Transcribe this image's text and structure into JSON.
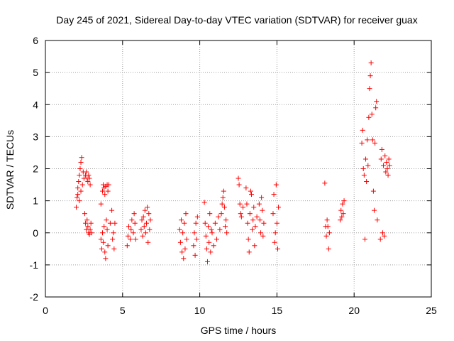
{
  "chart_data": {
    "type": "scatter",
    "title": "Day 245 of 2021, Sidereal Day-to-day VTEC variation (SDTVAR) for receiver guax",
    "xlabel": "GPS time / hours",
    "ylabel": "SDTVAR / TECUs",
    "xlim": [
      0,
      25
    ],
    "ylim": [
      -2,
      6
    ],
    "x_ticks": [
      0,
      5,
      10,
      15,
      20,
      25
    ],
    "x_tick_labels": [
      "0",
      "5",
      "10",
      "15",
      "20",
      "25"
    ],
    "y_ticks": [
      -2,
      -1,
      0,
      1,
      2,
      3,
      4,
      5,
      6
    ],
    "y_tick_labels": [
      "-2",
      "-1",
      "0",
      "1",
      "2",
      "3",
      "4",
      "5",
      "6"
    ],
    "grid": true,
    "marker": "plus",
    "marker_color": "#ff0000",
    "series": [
      {
        "name": "SDTVAR",
        "points": [
          [
            2.0,
            0.8
          ],
          [
            2.05,
            1.1
          ],
          [
            2.1,
            1.4
          ],
          [
            2.15,
            1.6
          ],
          [
            2.2,
            1.8
          ],
          [
            2.25,
            2.0
          ],
          [
            2.3,
            2.2
          ],
          [
            2.35,
            2.35
          ],
          [
            2.1,
            1.2
          ],
          [
            2.2,
            1.0
          ],
          [
            2.3,
            1.3
          ],
          [
            2.4,
            1.5
          ],
          [
            2.45,
            1.9
          ],
          [
            2.5,
            1.7
          ],
          [
            2.6,
            1.8
          ],
          [
            2.65,
            1.9
          ],
          [
            2.7,
            1.7
          ],
          [
            2.75,
            1.6
          ],
          [
            2.8,
            1.8
          ],
          [
            2.85,
            1.7
          ],
          [
            2.9,
            1.5
          ],
          [
            2.55,
            0.6
          ],
          [
            2.6,
            0.3
          ],
          [
            2.65,
            0.1
          ],
          [
            2.7,
            0.4
          ],
          [
            2.75,
            0.2
          ],
          [
            2.8,
            0.0
          ],
          [
            2.85,
            -0.05
          ],
          [
            2.9,
            0.1
          ],
          [
            2.95,
            0.3
          ],
          [
            3.0,
            0.0
          ],
          [
            3.6,
            0.9
          ],
          [
            3.7,
            1.3
          ],
          [
            3.75,
            1.5
          ],
          [
            3.8,
            1.4
          ],
          [
            3.85,
            1.2
          ],
          [
            3.9,
            1.45
          ],
          [
            4.0,
            1.5
          ],
          [
            4.05,
            1.3
          ],
          [
            4.1,
            1.5
          ],
          [
            3.6,
            -0.2
          ],
          [
            3.65,
            -0.5
          ],
          [
            3.7,
            0.0
          ],
          [
            3.75,
            -0.3
          ],
          [
            3.8,
            0.2
          ],
          [
            3.85,
            -0.6
          ],
          [
            3.9,
            -0.8
          ],
          [
            3.95,
            0.4
          ],
          [
            4.0,
            0.1
          ],
          [
            4.05,
            -0.4
          ],
          [
            4.2,
            0.3
          ],
          [
            4.3,
            0.7
          ],
          [
            4.35,
            -0.2
          ],
          [
            4.4,
            0.0
          ],
          [
            4.45,
            -0.5
          ],
          [
            4.5,
            0.3
          ],
          [
            5.3,
            -0.4
          ],
          [
            5.35,
            -0.1
          ],
          [
            5.4,
            0.2
          ],
          [
            5.5,
            -0.2
          ],
          [
            5.55,
            0.1
          ],
          [
            5.6,
            0.4
          ],
          [
            5.7,
            0.0
          ],
          [
            5.75,
            0.6
          ],
          [
            5.8,
            0.3
          ],
          [
            5.85,
            -0.2
          ],
          [
            6.2,
            0.1
          ],
          [
            6.25,
            0.4
          ],
          [
            6.3,
            -0.1
          ],
          [
            6.35,
            0.5
          ],
          [
            6.4,
            0.2
          ],
          [
            6.45,
            0.7
          ],
          [
            6.5,
            0.0
          ],
          [
            6.55,
            0.3
          ],
          [
            6.6,
            0.8
          ],
          [
            6.65,
            -0.3
          ],
          [
            6.7,
            0.6
          ],
          [
            6.75,
            0.1
          ],
          [
            6.8,
            0.4
          ],
          [
            8.7,
            0.1
          ],
          [
            8.75,
            -0.3
          ],
          [
            8.8,
            0.4
          ],
          [
            8.85,
            -0.6
          ],
          [
            8.9,
            0.0
          ],
          [
            8.95,
            -0.8
          ],
          [
            9.0,
            0.3
          ],
          [
            9.05,
            -0.5
          ],
          [
            9.1,
            0.6
          ],
          [
            9.15,
            -0.2
          ],
          [
            9.6,
            -0.4
          ],
          [
            9.65,
            0.0
          ],
          [
            9.7,
            -0.7
          ],
          [
            9.75,
            0.3
          ],
          [
            9.8,
            -0.2
          ],
          [
            9.85,
            0.5
          ],
          [
            10.3,
            0.95
          ],
          [
            10.35,
            0.3
          ],
          [
            10.4,
            -0.1
          ],
          [
            10.45,
            -0.5
          ],
          [
            10.5,
            -0.9
          ],
          [
            10.55,
            0.2
          ],
          [
            10.6,
            -0.3
          ],
          [
            10.65,
            0.6
          ],
          [
            10.7,
            -0.6
          ],
          [
            10.75,
            0.1
          ],
          [
            10.8,
            0.0
          ],
          [
            10.9,
            -0.4
          ],
          [
            11.0,
            0.3
          ],
          [
            11.1,
            -0.2
          ],
          [
            11.2,
            0.5
          ],
          [
            11.3,
            0.1
          ],
          [
            11.4,
            0.6
          ],
          [
            11.45,
            0.9
          ],
          [
            11.5,
            1.1
          ],
          [
            11.55,
            1.3
          ],
          [
            11.6,
            0.8
          ],
          [
            11.65,
            0.2
          ],
          [
            11.7,
            0.4
          ],
          [
            11.75,
            0.0
          ],
          [
            12.5,
            1.7
          ],
          [
            12.55,
            1.5
          ],
          [
            12.6,
            0.9
          ],
          [
            12.65,
            0.6
          ],
          [
            12.7,
            0.5
          ],
          [
            12.8,
            0.8
          ],
          [
            13.0,
            1.4
          ],
          [
            13.05,
            0.9
          ],
          [
            13.1,
            0.3
          ],
          [
            13.15,
            -0.2
          ],
          [
            13.2,
            -0.6
          ],
          [
            13.25,
            0.6
          ],
          [
            13.3,
            1.3
          ],
          [
            13.35,
            1.2
          ],
          [
            13.4,
            0.1
          ],
          [
            13.45,
            0.4
          ],
          [
            13.5,
            0.8
          ],
          [
            13.55,
            -0.4
          ],
          [
            13.6,
            0.2
          ],
          [
            13.7,
            0.5
          ],
          [
            13.85,
            0.9
          ],
          [
            13.9,
            0.4
          ],
          [
            13.95,
            0.0
          ],
          [
            14.0,
            1.1
          ],
          [
            14.05,
            0.7
          ],
          [
            14.1,
            -0.1
          ],
          [
            14.15,
            0.3
          ],
          [
            14.75,
            0.6
          ],
          [
            14.8,
            1.2
          ],
          [
            14.85,
            -0.3
          ],
          [
            14.9,
            0.0
          ],
          [
            14.95,
            1.5
          ],
          [
            15.0,
            0.3
          ],
          [
            15.05,
            -0.5
          ],
          [
            15.1,
            0.8
          ],
          [
            18.1,
            1.55
          ],
          [
            18.15,
            0.2
          ],
          [
            18.2,
            -0.1
          ],
          [
            18.25,
            0.4
          ],
          [
            18.3,
            0.2
          ],
          [
            18.35,
            -0.5
          ],
          [
            18.4,
            0.0
          ],
          [
            19.1,
            0.4
          ],
          [
            19.15,
            0.7
          ],
          [
            19.2,
            0.5
          ],
          [
            19.25,
            0.9
          ],
          [
            19.3,
            0.6
          ],
          [
            19.35,
            1.0
          ],
          [
            20.5,
            2.8
          ],
          [
            20.55,
            3.2
          ],
          [
            20.6,
            2.0
          ],
          [
            20.65,
            1.8
          ],
          [
            20.7,
            -0.2
          ],
          [
            20.75,
            2.3
          ],
          [
            20.8,
            1.6
          ],
          [
            20.85,
            2.9
          ],
          [
            20.9,
            2.1
          ],
          [
            20.95,
            3.6
          ],
          [
            21.0,
            4.5
          ],
          [
            21.05,
            4.9
          ],
          [
            21.1,
            5.3
          ],
          [
            21.15,
            3.7
          ],
          [
            21.2,
            2.9
          ],
          [
            21.25,
            1.3
          ],
          [
            21.3,
            0.7
          ],
          [
            21.35,
            2.8
          ],
          [
            21.4,
            3.9
          ],
          [
            21.45,
            4.1
          ],
          [
            21.5,
            0.4
          ],
          [
            21.7,
            -0.2
          ],
          [
            21.75,
            2.3
          ],
          [
            21.8,
            2.6
          ],
          [
            21.85,
            0.0
          ],
          [
            21.9,
            2.1
          ],
          [
            21.95,
            -0.1
          ],
          [
            22.0,
            2.4
          ],
          [
            22.05,
            1.9
          ],
          [
            22.1,
            2.2
          ],
          [
            22.15,
            2.0
          ],
          [
            22.2,
            1.8
          ],
          [
            22.25,
            2.3
          ],
          [
            22.3,
            2.1
          ]
        ]
      }
    ]
  }
}
